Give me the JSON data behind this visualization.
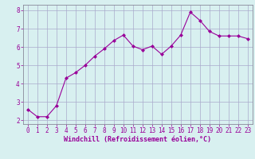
{
  "x": [
    0,
    1,
    2,
    3,
    4,
    5,
    6,
    7,
    8,
    9,
    10,
    11,
    12,
    13,
    14,
    15,
    16,
    17,
    18,
    19,
    20,
    21,
    22,
    23
  ],
  "y": [
    2.6,
    2.2,
    2.2,
    2.8,
    4.3,
    4.6,
    5.0,
    5.5,
    5.9,
    6.35,
    6.65,
    6.05,
    5.85,
    6.05,
    5.6,
    6.05,
    6.65,
    7.9,
    7.45,
    6.85,
    6.6,
    6.6,
    6.6,
    6.45
  ],
  "line_color": "#990099",
  "marker": "D",
  "marker_size": 2.0,
  "bg_color": "#d8f0f0",
  "grid_color": "#aaaacc",
  "xlabel": "Windchill (Refroidissement éolien,°C)",
  "xlabel_color": "#990099",
  "tick_color": "#990099",
  "spine_color": "#888899",
  "ylim": [
    1.8,
    8.3
  ],
  "xlim": [
    -0.5,
    23.5
  ],
  "yticks": [
    2,
    3,
    4,
    5,
    6,
    7,
    8
  ],
  "xticks": [
    0,
    1,
    2,
    3,
    4,
    5,
    6,
    7,
    8,
    9,
    10,
    11,
    12,
    13,
    14,
    15,
    16,
    17,
    18,
    19,
    20,
    21,
    22,
    23
  ],
  "tick_fontsize": 5.5,
  "xlabel_fontsize": 6.0
}
